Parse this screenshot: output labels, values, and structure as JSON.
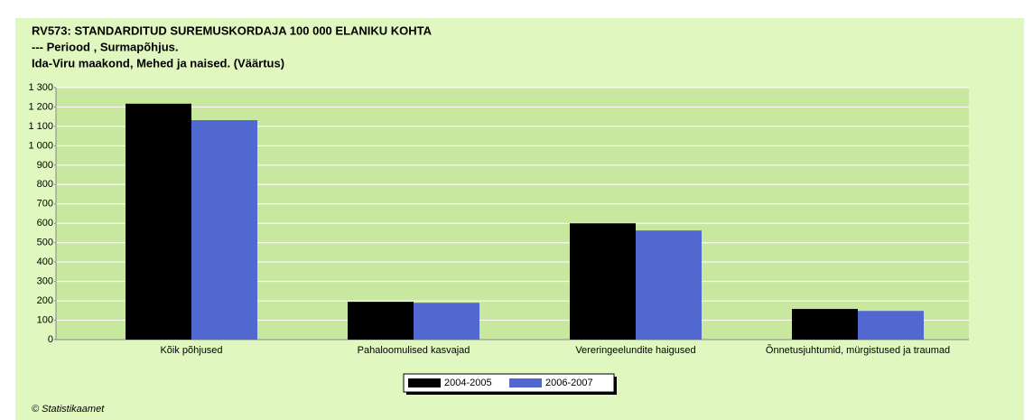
{
  "chart_data": {
    "type": "bar",
    "title": "RV573: STANDARDITUD SUREMUSKORDAJA 100 000 ELANIKU KOHTA",
    "subtitle": "--- Periood , Surmapõhjus.",
    "subtitle2": "Ida-Viru maakond, Mehed ja naised. (Väärtus)",
    "footer": "© Statistikaamet",
    "categories": [
      "Kõik põhjused",
      "Pahaloomulised kasvajad",
      "Vereringeelundite haigused",
      "Õnnetusjuhtumid, mürgistused ja traumad"
    ],
    "series": [
      {
        "name": "2004-2005",
        "color": "#000000",
        "values": [
          1217,
          195,
          600,
          158
        ]
      },
      {
        "name": "2006-2007",
        "color": "#5068d0",
        "values": [
          1132,
          190,
          563,
          148
        ]
      }
    ],
    "ylim": [
      0,
      1300
    ],
    "yticks": [
      0,
      100,
      200,
      300,
      400,
      500,
      600,
      700,
      800,
      900,
      {
        "value": 1000,
        "label": "1 000"
      },
      {
        "value": 1100,
        "label": "1 100"
      },
      {
        "value": 1200,
        "label": "1 200"
      },
      {
        "value": 1300,
        "label": "1 300"
      }
    ],
    "grid": true
  }
}
